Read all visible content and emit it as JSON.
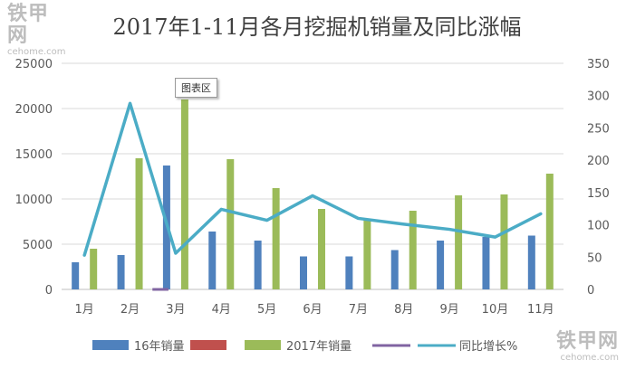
{
  "watermark": {
    "brand": "铁甲网",
    "site": "cehome.com"
  },
  "tooltip": "图表区",
  "chart_data": {
    "type": "bar",
    "title": "2017年1-11月各月挖掘机销量及同比涨幅",
    "categories": [
      "1月",
      "2月",
      "3月",
      "4月",
      "5月",
      "6月",
      "7月",
      "8月",
      "9月",
      "10月",
      "11月"
    ],
    "series": [
      {
        "name": "16年销量",
        "type": "bar",
        "axis": "left",
        "color": "#4f81bd",
        "values": [
          3000,
          3800,
          13700,
          6400,
          5400,
          3650,
          3650,
          4350,
          5400,
          5800,
          5950
        ]
      },
      {
        "name": "",
        "type": "bar",
        "axis": "left",
        "color": "#c0504d",
        "values": [
          0,
          0,
          0,
          0,
          0,
          0,
          0,
          0,
          0,
          0,
          0
        ]
      },
      {
        "name": "2017年销量",
        "type": "bar",
        "axis": "left",
        "color": "#9bbb59",
        "values": [
          4500,
          14500,
          21000,
          14400,
          11200,
          8900,
          7800,
          8700,
          10400,
          10500,
          12800
        ]
      },
      {
        "name": "",
        "type": "line",
        "axis": "left",
        "color": "#8064a2",
        "values": [
          0,
          0,
          200,
          200,
          0,
          0,
          0,
          0,
          0,
          0,
          0
        ]
      },
      {
        "name": "同比增长%",
        "type": "line",
        "axis": "right",
        "color": "#4bacc6",
        "values": [
          53,
          288,
          56,
          124,
          107,
          145,
          110,
          101,
          93,
          81,
          117
        ]
      }
    ],
    "y_left": {
      "min": 0,
      "max": 25000,
      "ticks": [
        "0",
        "5000",
        "10000",
        "15000",
        "20000",
        "25000"
      ]
    },
    "y_right": {
      "min": 0,
      "max": 350,
      "ticks": [
        "0",
        "50",
        "100",
        "150",
        "200",
        "250",
        "300",
        "350"
      ]
    },
    "grid": true,
    "legend": {
      "position": "bottom",
      "entries": [
        {
          "label": "16年销量",
          "swatch": "box",
          "color": "#4f81bd"
        },
        {
          "label": "",
          "swatch": "box",
          "color": "#c0504d"
        },
        {
          "label": "2017年销量",
          "swatch": "box",
          "color": "#9bbb59"
        },
        {
          "label": "",
          "swatch": "line",
          "color": "#8064a2"
        },
        {
          "label": "同比增长%",
          "swatch": "line",
          "color": "#4bacc6"
        }
      ]
    }
  }
}
